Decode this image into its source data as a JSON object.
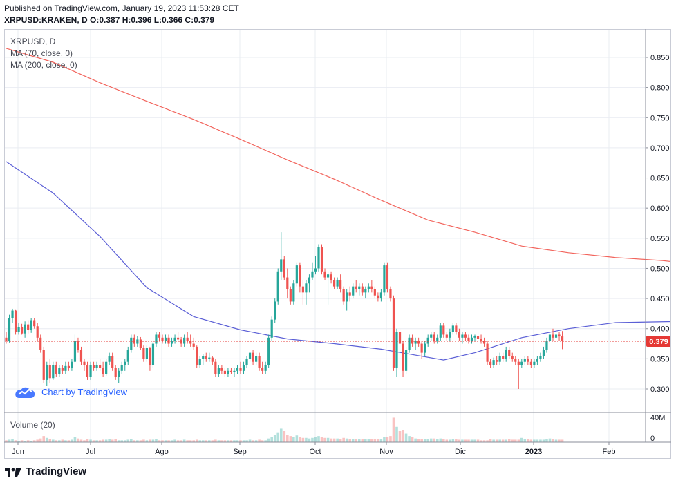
{
  "header": {
    "published": "Published on TradingView.com, January 19, 2023 11:53:28 CET",
    "ohlc": "XRPUSD:KRAKEN, D O:0.387 H:0.396 L:0.366 C:0.379"
  },
  "legend": {
    "symbol": "XRPUSD, D",
    "ma70": "MA (70, close, 0)",
    "ma200": "MA (200, close, 0)"
  },
  "volume_legend": "Volume (20)",
  "watermark": "Chart by TradingView",
  "brand": "TradingView",
  "colors": {
    "up": "#26a69a",
    "down": "#ef5350",
    "ma70": "#5b5fd6",
    "ma200": "#f2645c",
    "last_price": "#e53935",
    "grid": "#e9ecf2"
  },
  "chart_data": {
    "type": "candlestick",
    "symbol": "XRPUSD:KRAKEN",
    "interval": "D",
    "last_price_label": "0.379",
    "y_ticks": [
      "0.300",
      "0.350",
      "0.400",
      "0.450",
      "0.500",
      "0.550",
      "0.600",
      "0.650",
      "0.700",
      "0.750",
      "0.800",
      "0.850"
    ],
    "ylim": [
      0.28,
      0.89
    ],
    "x_labels": [
      "Jun",
      "Jul",
      "Ago",
      "Sep",
      "Oct",
      "Nov",
      "Dic",
      "2023",
      "Feb"
    ],
    "volume_ticks": [
      "40M",
      "0"
    ],
    "ma70": [
      [
        0,
        0.677
      ],
      [
        15,
        0.625
      ],
      [
        30,
        0.553
      ],
      [
        45,
        0.468
      ],
      [
        60,
        0.42
      ],
      [
        75,
        0.398
      ],
      [
        90,
        0.383
      ],
      [
        105,
        0.375
      ],
      [
        120,
        0.366
      ],
      [
        130,
        0.357
      ],
      [
        140,
        0.348
      ],
      [
        150,
        0.36
      ],
      [
        165,
        0.385
      ],
      [
        180,
        0.4
      ],
      [
        195,
        0.41
      ],
      [
        215,
        0.412
      ],
      [
        235,
        0.412
      ],
      [
        250,
        0.414
      ],
      [
        265,
        0.423
      ],
      [
        275,
        0.425
      ],
      [
        285,
        0.422
      ],
      [
        295,
        0.41
      ],
      [
        305,
        0.405
      ]
    ],
    "ma200": [
      [
        0,
        0.865
      ],
      [
        15,
        0.842
      ],
      [
        30,
        0.808
      ],
      [
        45,
        0.777
      ],
      [
        60,
        0.747
      ],
      [
        75,
        0.714
      ],
      [
        90,
        0.68
      ],
      [
        105,
        0.648
      ],
      [
        120,
        0.613
      ],
      [
        135,
        0.58
      ],
      [
        150,
        0.56
      ],
      [
        165,
        0.537
      ],
      [
        180,
        0.526
      ],
      [
        195,
        0.518
      ],
      [
        210,
        0.513
      ],
      [
        220,
        0.507
      ],
      [
        235,
        0.492
      ],
      [
        250,
        0.478
      ],
      [
        265,
        0.46
      ],
      [
        280,
        0.44
      ],
      [
        295,
        0.42
      ],
      [
        305,
        0.411
      ]
    ],
    "candles": [
      [
        0.385,
        0.395,
        0.375,
        0.379
      ],
      [
        0.379,
        0.423,
        0.377,
        0.417
      ],
      [
        0.417,
        0.433,
        0.41,
        0.43
      ],
      [
        0.43,
        0.432,
        0.39,
        0.395
      ],
      [
        0.395,
        0.41,
        0.39,
        0.402
      ],
      [
        0.402,
        0.408,
        0.39,
        0.392
      ],
      [
        0.392,
        0.412,
        0.385,
        0.407
      ],
      [
        0.407,
        0.414,
        0.392,
        0.398
      ],
      [
        0.398,
        0.418,
        0.393,
        0.414
      ],
      [
        0.414,
        0.418,
        0.4,
        0.404
      ],
      [
        0.404,
        0.41,
        0.38,
        0.385
      ],
      [
        0.385,
        0.39,
        0.36,
        0.365
      ],
      [
        0.365,
        0.37,
        0.31,
        0.315
      ],
      [
        0.315,
        0.345,
        0.305,
        0.34
      ],
      [
        0.34,
        0.35,
        0.31,
        0.318
      ],
      [
        0.318,
        0.345,
        0.315,
        0.34
      ],
      [
        0.34,
        0.345,
        0.32,
        0.325
      ],
      [
        0.325,
        0.34,
        0.32,
        0.335
      ],
      [
        0.335,
        0.34,
        0.325,
        0.33
      ],
      [
        0.33,
        0.345,
        0.325,
        0.338
      ],
      [
        0.338,
        0.345,
        0.33,
        0.335
      ],
      [
        0.335,
        0.35,
        0.33,
        0.345
      ],
      [
        0.345,
        0.39,
        0.342,
        0.38
      ],
      [
        0.38,
        0.385,
        0.36,
        0.365
      ],
      [
        0.365,
        0.37,
        0.34,
        0.345
      ],
      [
        0.345,
        0.35,
        0.33,
        0.34
      ],
      [
        0.34,
        0.345,
        0.315,
        0.32
      ],
      [
        0.32,
        0.345,
        0.315,
        0.34
      ],
      [
        0.34,
        0.345,
        0.33,
        0.335
      ],
      [
        0.335,
        0.345,
        0.33,
        0.34
      ],
      [
        0.34,
        0.35,
        0.33,
        0.335
      ],
      [
        0.335,
        0.345,
        0.32,
        0.325
      ],
      [
        0.325,
        0.35,
        0.322,
        0.345
      ],
      [
        0.345,
        0.36,
        0.34,
        0.355
      ],
      [
        0.355,
        0.36,
        0.33,
        0.335
      ],
      [
        0.335,
        0.34,
        0.315,
        0.32
      ],
      [
        0.32,
        0.335,
        0.31,
        0.33
      ],
      [
        0.33,
        0.345,
        0.325,
        0.34
      ],
      [
        0.34,
        0.35,
        0.33,
        0.345
      ],
      [
        0.345,
        0.37,
        0.34,
        0.365
      ],
      [
        0.365,
        0.39,
        0.36,
        0.385
      ],
      [
        0.385,
        0.39,
        0.37,
        0.375
      ],
      [
        0.375,
        0.388,
        0.37,
        0.382
      ],
      [
        0.382,
        0.386,
        0.365,
        0.368
      ],
      [
        0.368,
        0.372,
        0.345,
        0.35
      ],
      [
        0.35,
        0.372,
        0.345,
        0.368
      ],
      [
        0.368,
        0.37,
        0.33,
        0.34
      ],
      [
        0.34,
        0.38,
        0.335,
        0.375
      ],
      [
        0.375,
        0.395,
        0.37,
        0.39
      ],
      [
        0.39,
        0.395,
        0.38,
        0.385
      ],
      [
        0.385,
        0.39,
        0.375,
        0.38
      ],
      [
        0.38,
        0.39,
        0.375,
        0.385
      ],
      [
        0.385,
        0.39,
        0.37,
        0.375
      ],
      [
        0.375,
        0.385,
        0.37,
        0.38
      ],
      [
        0.38,
        0.39,
        0.375,
        0.385
      ],
      [
        0.385,
        0.395,
        0.378,
        0.382
      ],
      [
        0.382,
        0.386,
        0.37,
        0.375
      ],
      [
        0.375,
        0.39,
        0.37,
        0.385
      ],
      [
        0.385,
        0.395,
        0.375,
        0.38
      ],
      [
        0.38,
        0.39,
        0.37,
        0.375
      ],
      [
        0.375,
        0.385,
        0.365,
        0.37
      ],
      [
        0.37,
        0.372,
        0.335,
        0.34
      ],
      [
        0.34,
        0.355,
        0.335,
        0.35
      ],
      [
        0.35,
        0.358,
        0.34,
        0.355
      ],
      [
        0.355,
        0.36,
        0.345,
        0.35
      ],
      [
        0.35,
        0.36,
        0.345,
        0.352
      ],
      [
        0.352,
        0.355,
        0.34,
        0.345
      ],
      [
        0.345,
        0.35,
        0.32,
        0.325
      ],
      [
        0.325,
        0.34,
        0.32,
        0.335
      ],
      [
        0.335,
        0.34,
        0.325,
        0.33
      ],
      [
        0.33,
        0.335,
        0.32,
        0.325
      ],
      [
        0.325,
        0.335,
        0.32,
        0.33
      ],
      [
        0.33,
        0.335,
        0.325,
        0.328
      ],
      [
        0.328,
        0.335,
        0.32,
        0.33
      ],
      [
        0.33,
        0.34,
        0.325,
        0.335
      ],
      [
        0.335,
        0.345,
        0.325,
        0.33
      ],
      [
        0.33,
        0.345,
        0.325,
        0.34
      ],
      [
        0.34,
        0.355,
        0.335,
        0.35
      ],
      [
        0.35,
        0.362,
        0.345,
        0.36
      ],
      [
        0.36,
        0.365,
        0.34,
        0.345
      ],
      [
        0.345,
        0.36,
        0.34,
        0.355
      ],
      [
        0.355,
        0.36,
        0.33,
        0.335
      ],
      [
        0.335,
        0.345,
        0.325,
        0.33
      ],
      [
        0.33,
        0.345,
        0.325,
        0.34
      ],
      [
        0.34,
        0.39,
        0.335,
        0.385
      ],
      [
        0.385,
        0.42,
        0.38,
        0.415
      ],
      [
        0.415,
        0.45,
        0.41,
        0.445
      ],
      [
        0.445,
        0.5,
        0.44,
        0.495
      ],
      [
        0.495,
        0.56,
        0.48,
        0.515
      ],
      [
        0.515,
        0.52,
        0.48,
        0.485
      ],
      [
        0.485,
        0.5,
        0.45,
        0.465
      ],
      [
        0.465,
        0.47,
        0.44,
        0.445
      ],
      [
        0.445,
        0.48,
        0.44,
        0.475
      ],
      [
        0.475,
        0.51,
        0.47,
        0.505
      ],
      [
        0.505,
        0.51,
        0.46,
        0.47
      ],
      [
        0.47,
        0.48,
        0.44,
        0.46
      ],
      [
        0.46,
        0.48,
        0.44,
        0.475
      ],
      [
        0.475,
        0.49,
        0.46,
        0.485
      ],
      [
        0.485,
        0.51,
        0.48,
        0.495
      ],
      [
        0.495,
        0.52,
        0.49,
        0.5
      ],
      [
        0.5,
        0.54,
        0.495,
        0.535
      ],
      [
        0.535,
        0.54,
        0.49,
        0.495
      ],
      [
        0.495,
        0.5,
        0.48,
        0.485
      ],
      [
        0.485,
        0.495,
        0.44,
        0.49
      ],
      [
        0.49,
        0.495,
        0.475,
        0.48
      ],
      [
        0.48,
        0.485,
        0.465,
        0.47
      ],
      [
        0.47,
        0.485,
        0.465,
        0.48
      ],
      [
        0.48,
        0.49,
        0.46,
        0.465
      ],
      [
        0.465,
        0.47,
        0.44,
        0.445
      ],
      [
        0.445,
        0.465,
        0.43,
        0.46
      ],
      [
        0.46,
        0.47,
        0.445,
        0.455
      ],
      [
        0.455,
        0.475,
        0.45,
        0.47
      ],
      [
        0.47,
        0.48,
        0.46,
        0.465
      ],
      [
        0.465,
        0.475,
        0.455,
        0.47
      ],
      [
        0.47,
        0.475,
        0.455,
        0.46
      ],
      [
        0.46,
        0.47,
        0.45,
        0.465
      ],
      [
        0.465,
        0.475,
        0.46,
        0.47
      ],
      [
        0.47,
        0.48,
        0.46,
        0.465
      ],
      [
        0.465,
        0.47,
        0.45,
        0.455
      ],
      [
        0.455,
        0.46,
        0.445,
        0.45
      ],
      [
        0.45,
        0.465,
        0.445,
        0.46
      ],
      [
        0.46,
        0.51,
        0.455,
        0.505
      ],
      [
        0.505,
        0.51,
        0.46,
        0.465
      ],
      [
        0.465,
        0.47,
        0.445,
        0.45
      ],
      [
        0.45,
        0.455,
        0.33,
        0.335
      ],
      [
        0.335,
        0.4,
        0.32,
        0.395
      ],
      [
        0.395,
        0.4,
        0.37,
        0.375
      ],
      [
        0.375,
        0.38,
        0.32,
        0.33
      ],
      [
        0.33,
        0.37,
        0.325,
        0.365
      ],
      [
        0.365,
        0.39,
        0.36,
        0.385
      ],
      [
        0.385,
        0.39,
        0.37,
        0.375
      ],
      [
        0.375,
        0.385,
        0.365,
        0.38
      ],
      [
        0.38,
        0.385,
        0.37,
        0.375
      ],
      [
        0.375,
        0.38,
        0.35,
        0.36
      ],
      [
        0.36,
        0.38,
        0.355,
        0.375
      ],
      [
        0.375,
        0.39,
        0.37,
        0.385
      ],
      [
        0.385,
        0.395,
        0.38,
        0.39
      ],
      [
        0.39,
        0.395,
        0.375,
        0.38
      ],
      [
        0.38,
        0.39,
        0.375,
        0.385
      ],
      [
        0.385,
        0.41,
        0.38,
        0.405
      ],
      [
        0.405,
        0.41,
        0.385,
        0.39
      ],
      [
        0.39,
        0.395,
        0.38,
        0.385
      ],
      [
        0.385,
        0.4,
        0.38,
        0.395
      ],
      [
        0.395,
        0.41,
        0.39,
        0.405
      ],
      [
        0.405,
        0.41,
        0.39,
        0.395
      ],
      [
        0.395,
        0.4,
        0.38,
        0.385
      ],
      [
        0.385,
        0.395,
        0.375,
        0.39
      ],
      [
        0.39,
        0.395,
        0.38,
        0.385
      ],
      [
        0.385,
        0.39,
        0.375,
        0.38
      ],
      [
        0.38,
        0.39,
        0.375,
        0.385
      ],
      [
        0.385,
        0.39,
        0.38,
        0.388
      ],
      [
        0.388,
        0.395,
        0.38,
        0.383
      ],
      [
        0.383,
        0.39,
        0.375,
        0.38
      ],
      [
        0.38,
        0.385,
        0.37,
        0.375
      ],
      [
        0.375,
        0.38,
        0.34,
        0.345
      ],
      [
        0.345,
        0.35,
        0.335,
        0.34
      ],
      [
        0.34,
        0.352,
        0.335,
        0.348
      ],
      [
        0.348,
        0.355,
        0.34,
        0.345
      ],
      [
        0.345,
        0.36,
        0.34,
        0.355
      ],
      [
        0.355,
        0.36,
        0.345,
        0.35
      ],
      [
        0.35,
        0.37,
        0.345,
        0.365
      ],
      [
        0.365,
        0.37,
        0.35,
        0.355
      ],
      [
        0.355,
        0.36,
        0.345,
        0.35
      ],
      [
        0.35,
        0.355,
        0.34,
        0.345
      ],
      [
        0.345,
        0.35,
        0.3,
        0.34
      ],
      [
        0.34,
        0.35,
        0.335,
        0.345
      ],
      [
        0.345,
        0.355,
        0.34,
        0.35
      ],
      [
        0.35,
        0.355,
        0.34,
        0.345
      ],
      [
        0.345,
        0.35,
        0.335,
        0.34
      ],
      [
        0.34,
        0.35,
        0.335,
        0.345
      ],
      [
        0.345,
        0.355,
        0.34,
        0.35
      ],
      [
        0.35,
        0.36,
        0.345,
        0.355
      ],
      [
        0.355,
        0.37,
        0.35,
        0.365
      ],
      [
        0.365,
        0.385,
        0.36,
        0.38
      ],
      [
        0.38,
        0.395,
        0.375,
        0.39
      ],
      [
        0.39,
        0.4,
        0.38,
        0.385
      ],
      [
        0.385,
        0.395,
        0.38,
        0.39
      ],
      [
        0.39,
        0.395,
        0.38,
        0.387
      ],
      [
        0.387,
        0.396,
        0.366,
        0.379
      ]
    ],
    "volume": [
      3,
      4,
      5,
      3,
      2,
      3,
      2,
      3,
      2,
      3,
      4,
      6,
      10,
      7,
      5,
      4,
      3,
      3,
      4,
      3,
      3,
      4,
      8,
      6,
      4,
      3,
      5,
      4,
      3,
      3,
      3,
      4,
      4,
      5,
      4,
      5,
      3,
      3,
      3,
      4,
      5,
      3,
      3,
      3,
      4,
      3,
      4,
      4,
      5,
      3,
      3,
      3,
      3,
      3,
      4,
      3,
      3,
      4,
      3,
      3,
      3,
      4,
      3,
      3,
      3,
      3,
      3,
      4,
      3,
      3,
      3,
      3,
      3,
      3,
      3,
      3,
      3,
      3,
      4,
      3,
      3,
      4,
      3,
      3,
      6,
      9,
      12,
      15,
      22,
      18,
      12,
      10,
      9,
      11,
      8,
      7,
      7,
      6,
      7,
      8,
      10,
      9,
      7,
      7,
      6,
      6,
      6,
      5,
      7,
      6,
      5,
      5,
      5,
      5,
      5,
      5,
      5,
      5,
      5,
      5,
      5,
      9,
      8,
      10,
      40,
      25,
      18,
      20,
      14,
      10,
      8,
      6,
      5,
      5,
      5,
      5,
      6,
      6,
      5,
      6,
      5,
      4,
      4,
      5,
      5,
      4,
      4,
      4,
      4,
      4,
      4,
      4,
      3,
      3,
      3,
      5,
      4,
      4,
      4,
      4,
      4,
      5,
      4,
      4,
      4,
      7,
      5,
      5,
      4,
      4,
      4,
      4,
      4,
      5,
      6,
      5,
      4,
      4,
      4,
      5,
      6
    ]
  }
}
